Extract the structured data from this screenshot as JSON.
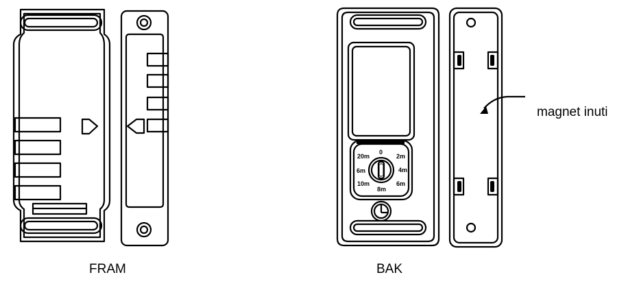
{
  "labels": {
    "front": "FRAM",
    "back": "BAK",
    "magnet_annotation": "magnet inuti"
  },
  "dial_labels": [
    "20m",
    "0",
    "2m",
    "4m",
    "6m",
    "8m",
    "10m",
    "6m"
  ]
}
